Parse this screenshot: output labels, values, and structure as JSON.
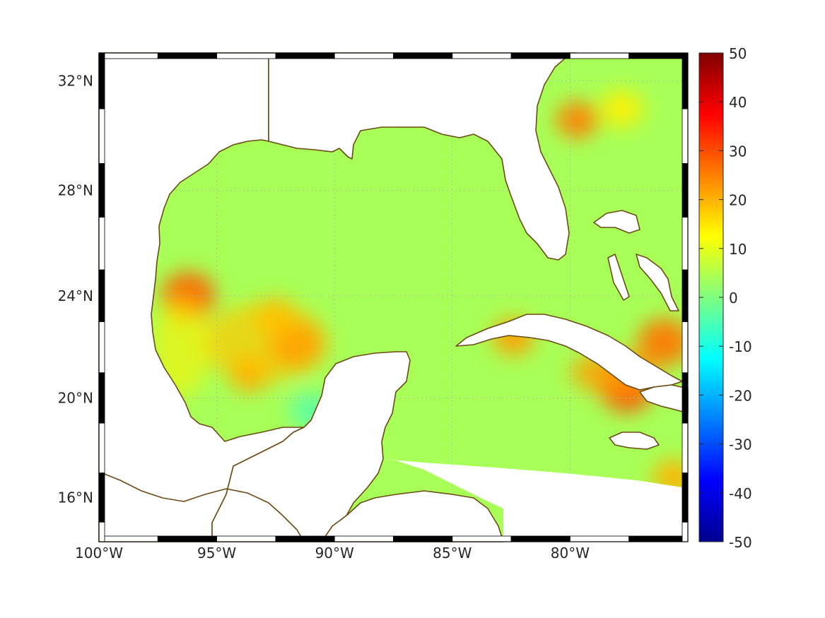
{
  "map": {
    "lon_range": [
      -100,
      -75
    ],
    "lat_range": [
      14.2,
      33
    ],
    "projection": "mercator",
    "grid": true,
    "frame_style": "alternating-black-white",
    "coastline_color": "#6b4a14",
    "ocean_field_extent": {
      "lon": [
        -99,
        -75.2
      ],
      "lat_range": [
        16.2,
        32.8
      ]
    },
    "lon_ticks": [
      {
        "value": -100,
        "label": "100°W"
      },
      {
        "value": -95,
        "label": "95°W"
      },
      {
        "value": -90,
        "label": "90°W"
      },
      {
        "value": -85,
        "label": "85°W"
      },
      {
        "value": -80,
        "label": "80°W"
      }
    ],
    "lat_ticks": [
      {
        "value": 32,
        "label": "32°N"
      },
      {
        "value": 28,
        "label": "28°N"
      },
      {
        "value": 24,
        "label": "24°N"
      },
      {
        "value": 20,
        "label": "20°N"
      },
      {
        "value": 16,
        "label": "16°N"
      }
    ]
  },
  "colorbar": {
    "colormap": "jet",
    "range": [
      -50,
      50
    ],
    "ticks": [
      {
        "value": 50,
        "label": "50"
      },
      {
        "value": 40,
        "label": "40"
      },
      {
        "value": 30,
        "label": "30"
      },
      {
        "value": 20,
        "label": "20"
      },
      {
        "value": 10,
        "label": "10"
      },
      {
        "value": 0,
        "label": "0"
      },
      {
        "value": -10,
        "label": "-10"
      },
      {
        "value": -20,
        "label": "-20"
      },
      {
        "value": -30,
        "label": "-30"
      },
      {
        "value": -40,
        "label": "-40"
      },
      {
        "value": -50,
        "label": "-50"
      }
    ]
  },
  "field_features": [
    {
      "lon": -96.2,
      "lat": 24.0,
      "value": 28
    },
    {
      "lon": -91.6,
      "lat": 22.1,
      "value": 30
    },
    {
      "lon": -93.6,
      "lat": 21.0,
      "value": 22
    },
    {
      "lon": -92.5,
      "lat": 23.2,
      "value": 20
    },
    {
      "lon": -77.6,
      "lat": 20.4,
      "value": 30
    },
    {
      "lon": -82.4,
      "lat": 22.4,
      "value": 22
    },
    {
      "lon": -77.8,
      "lat": 31.0,
      "value": 14
    },
    {
      "lon": -79.7,
      "lat": 30.6,
      "value": 25
    },
    {
      "lon": -75.6,
      "lat": 16.8,
      "value": 20
    },
    {
      "lon": -76.0,
      "lat": 22.2,
      "value": 26
    },
    {
      "lon": -91.0,
      "lat": 19.5,
      "value": -4
    }
  ]
}
